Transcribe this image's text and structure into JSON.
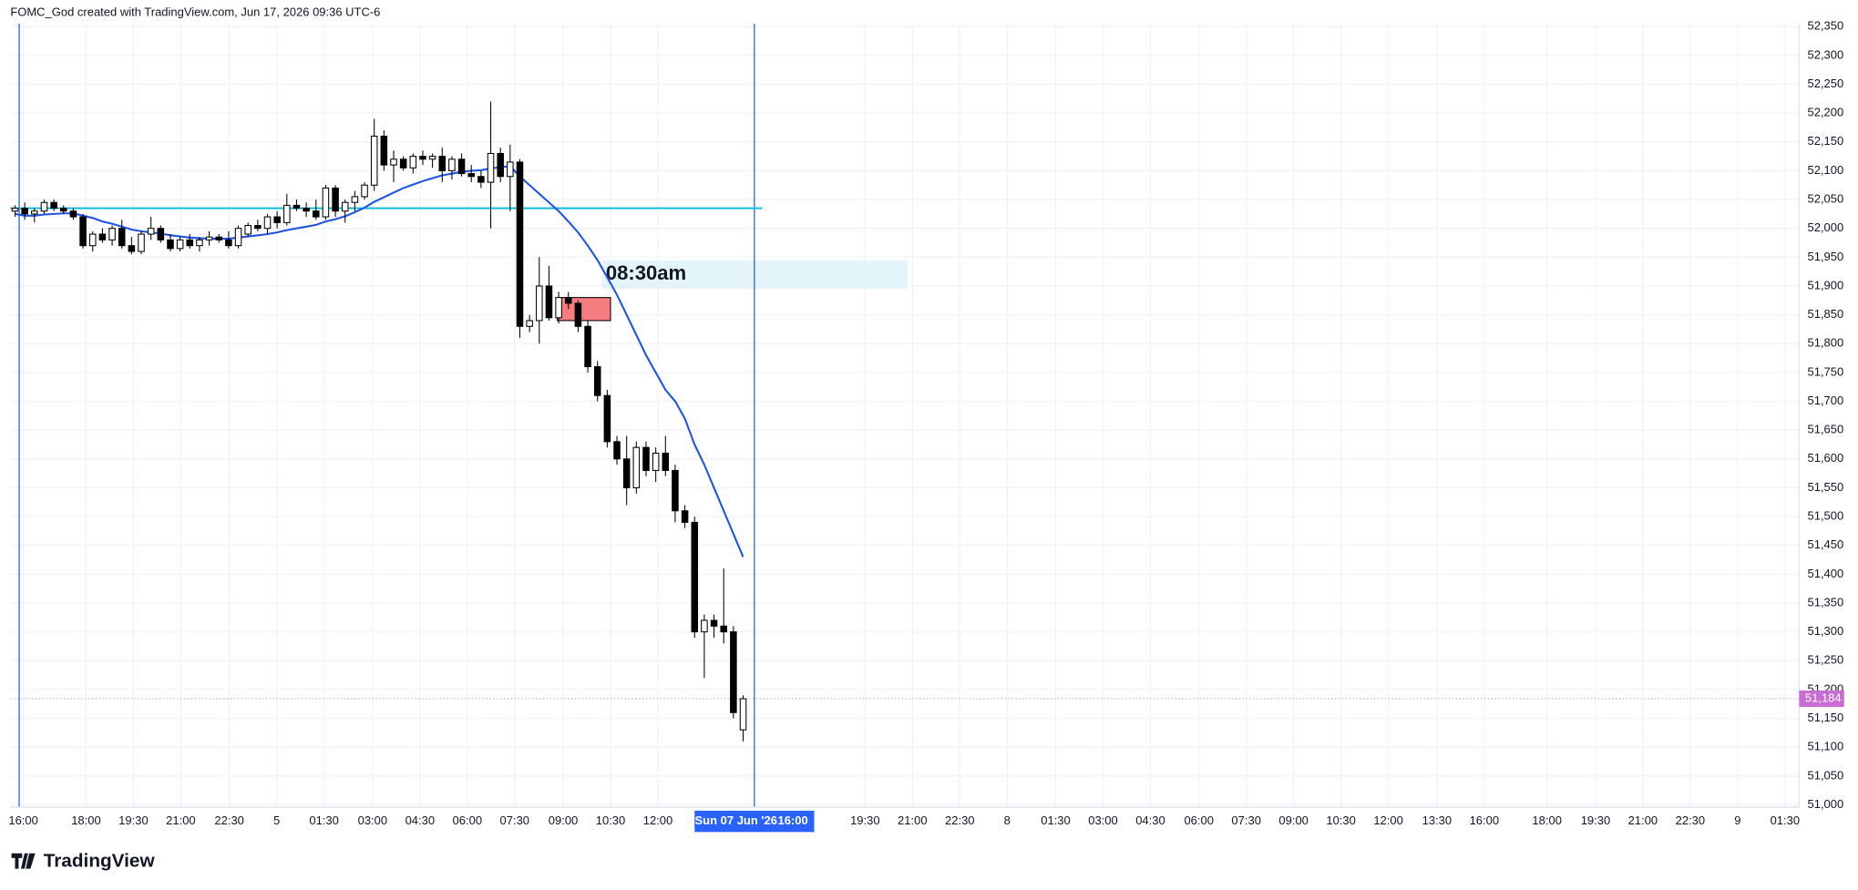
{
  "header": "FOMC_God created with TradingView.com, Jun 17, 2026 09:36 UTC-6",
  "footer": "TradingView",
  "chart_data": {
    "type": "candlestick",
    "open": [
      52030,
      52035,
      52025,
      52030,
      52045,
      52035,
      52030,
      52020,
      51970,
      51990,
      51980,
      52000,
      51970,
      51960,
      51990,
      52000,
      51980,
      51965,
      51980,
      51970,
      51980,
      51985,
      51980,
      51970,
      51990,
      52005,
      52000,
      52020,
      52010,
      52040,
      52035,
      52030,
      52020,
      52070,
      52030,
      52045,
      52055,
      52075,
      52160,
      52110,
      52120,
      52105,
      52125,
      52120,
      52125,
      52100,
      52120,
      52095,
      52090,
      52080,
      52130,
      52090,
      52115,
      51830,
      51840,
      51900,
      51845,
      51880,
      51870,
      51830,
      51760,
      51710,
      51630,
      51600,
      51550,
      51620,
      51580,
      51610,
      51580,
      51510,
      51490,
      51300,
      51320,
      51310,
      51300,
      51130
    ],
    "high": [
      52040,
      52045,
      52035,
      52050,
      52050,
      52040,
      52035,
      52025,
      51995,
      52000,
      52005,
      52015,
      51985,
      51995,
      52020,
      52005,
      51990,
      51985,
      51990,
      51985,
      51995,
      51990,
      51995,
      52005,
      52010,
      52015,
      52025,
      52030,
      52060,
      52050,
      52045,
      52050,
      52075,
      52075,
      52050,
      52065,
      52080,
      52190,
      52170,
      52135,
      52125,
      52130,
      52135,
      52130,
      52140,
      52125,
      52130,
      52110,
      52100,
      52220,
      52140,
      52145,
      52120,
      51850,
      51950,
      51935,
      51890,
      51890,
      51875,
      51840,
      51770,
      51720,
      51640,
      51640,
      51630,
      51630,
      51620,
      51640,
      51590,
      51520,
      51500,
      51330,
      51330,
      51410,
      51310,
      51190
    ],
    "low": [
      52020,
      52015,
      52010,
      52025,
      52030,
      52025,
      52015,
      51965,
      51960,
      51975,
      51970,
      51965,
      51955,
      51955,
      51980,
      51975,
      51960,
      51960,
      51965,
      51960,
      51970,
      51975,
      51965,
      51965,
      51985,
      51995,
      51990,
      52000,
      52005,
      52030,
      52020,
      52015,
      52015,
      52020,
      52010,
      52030,
      52050,
      52065,
      52100,
      52080,
      52100,
      52095,
      52110,
      52105,
      52080,
      52085,
      52090,
      52080,
      52070,
      52000,
      52080,
      52030,
      51810,
      51820,
      51800,
      51840,
      51835,
      51860,
      51820,
      51750,
      51700,
      51620,
      51590,
      51520,
      51540,
      51570,
      51560,
      51570,
      51490,
      51480,
      51290,
      51220,
      51290,
      51280,
      51150,
      51110
    ],
    "close": [
      52035,
      52025,
      52030,
      52045,
      52035,
      52030,
      52020,
      51970,
      51990,
      51980,
      52000,
      51970,
      51960,
      51990,
      52000,
      51980,
      51965,
      51980,
      51970,
      51980,
      51985,
      51980,
      51970,
      52000,
      52005,
      52000,
      52020,
      52010,
      52040,
      52035,
      52030,
      52020,
      52070,
      52030,
      52045,
      52055,
      52075,
      52160,
      52110,
      52120,
      52105,
      52125,
      52120,
      52125,
      52100,
      52120,
      52095,
      52090,
      52080,
      52130,
      52090,
      52115,
      51830,
      51840,
      51900,
      51845,
      51880,
      51870,
      51830,
      51760,
      51710,
      51630,
      51600,
      51550,
      51620,
      51580,
      51610,
      51580,
      51510,
      51490,
      51300,
      51320,
      51310,
      51300,
      51160,
      51184
    ],
    "moving_average": {
      "color": "#1e53e5",
      "values": [
        52025,
        52022,
        52022,
        52024,
        52025,
        52026,
        52026,
        52022,
        52018,
        52012,
        52008,
        52003,
        51998,
        51995,
        51993,
        51991,
        51988,
        51986,
        51984,
        51983,
        51982,
        51982,
        51982,
        51984,
        51986,
        51988,
        51990,
        51993,
        51997,
        52000,
        52003,
        52006,
        52012,
        52016,
        52021,
        52028,
        52036,
        52046,
        52054,
        52062,
        52070,
        52076,
        52082,
        52087,
        52092,
        52095,
        52098,
        52100,
        52101,
        52104,
        52106,
        52108,
        52090,
        52075,
        52060,
        52045,
        52030,
        52012,
        51993,
        51970,
        51945,
        51915,
        51885,
        51850,
        51815,
        51780,
        51750,
        51720,
        51700,
        51670,
        51625,
        51590,
        51550,
        51510,
        51470,
        51430
      ]
    },
    "level_line": {
      "value": 52035,
      "color": "#00bcd4"
    },
    "zone": {
      "top": 51880,
      "bottom": 51840,
      "color": "#f77c80"
    },
    "annotation": "08:30am",
    "last_price": {
      "value": 51184,
      "label": "51,184"
    },
    "ylim": [
      51000,
      52350
    ],
    "yticks": [
      {
        "value": 51000,
        "label": "51,000"
      },
      {
        "value": 51050,
        "label": "51,050"
      },
      {
        "value": 51100,
        "label": "51,100"
      },
      {
        "value": 51150,
        "label": "51,150"
      },
      {
        "value": 51200,
        "label": "51,200"
      },
      {
        "value": 51250,
        "label": "51,250"
      },
      {
        "value": 51300,
        "label": "51,300"
      },
      {
        "value": 51350,
        "label": "51,350"
      },
      {
        "value": 51400,
        "label": "51,400"
      },
      {
        "value": 51450,
        "label": "51,450"
      },
      {
        "value": 51500,
        "label": "51,500"
      },
      {
        "value": 51550,
        "label": "51,550"
      },
      {
        "value": 51600,
        "label": "51,600"
      },
      {
        "value": 51650,
        "label": "51,650"
      },
      {
        "value": 51700,
        "label": "51,700"
      },
      {
        "value": 51750,
        "label": "51,750"
      },
      {
        "value": 51800,
        "label": "51,800"
      },
      {
        "value": 51850,
        "label": "51,850"
      },
      {
        "value": 51900,
        "label": "51,900"
      },
      {
        "value": 51950,
        "label": "51,950"
      },
      {
        "value": 52000,
        "label": "52,000"
      },
      {
        "value": 52050,
        "label": "52,050"
      },
      {
        "value": 52100,
        "label": "52,100"
      },
      {
        "value": 52150,
        "label": "52,150"
      },
      {
        "value": 52200,
        "label": "52,200"
      },
      {
        "value": 52250,
        "label": "52,250"
      },
      {
        "value": 52300,
        "label": "52,300"
      },
      {
        "value": 52350,
        "label": "52,350"
      }
    ],
    "x_labels": [
      "16:00",
      "18:00",
      "19:30",
      "21:00",
      "22:30",
      "5",
      "01:30",
      "03:00",
      "04:30",
      "06:00",
      "07:30",
      "09:00",
      "10:30",
      "12:00",
      "19:30",
      "21:00",
      "22:30",
      "8",
      "01:30",
      "03:00",
      "04:30",
      "06:00",
      "07:30",
      "09:00",
      "10:30",
      "12:00",
      "13:30",
      "16:00",
      "18:00",
      "19:30",
      "21:00",
      "22:30",
      "9",
      "01:30"
    ],
    "crosshair_date": "Sun 07 Jun '26",
    "crosshair_time": "16:00",
    "grid": true
  }
}
